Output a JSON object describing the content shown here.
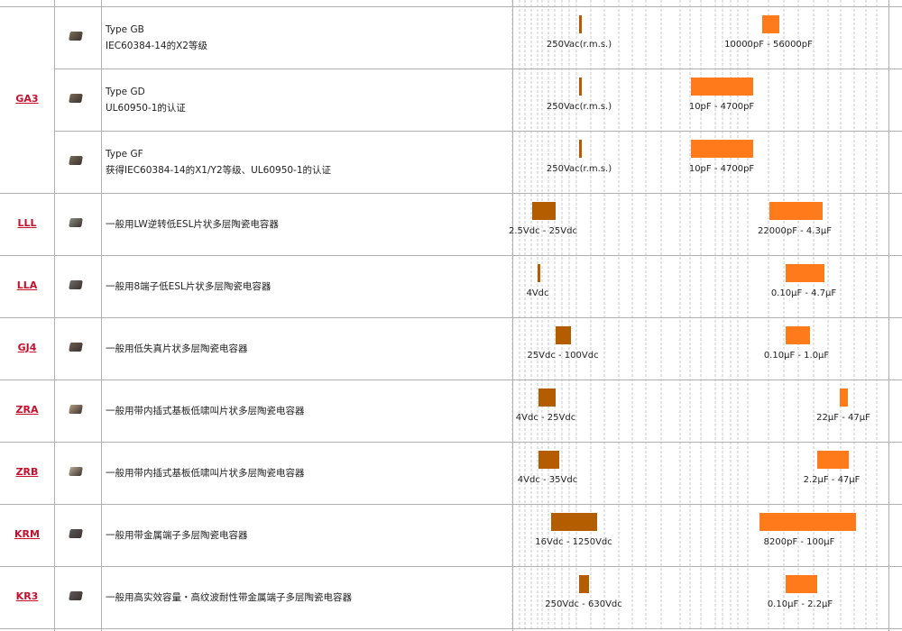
{
  "colors": {
    "voltage_bar": "#b35c00",
    "capacitance_bar": "#ff7a1a",
    "series_link": "#c8102e",
    "grid_line": "#c8c8c8"
  },
  "rows": [
    {
      "series": "",
      "desc1": "Type GB",
      "desc2": "IEC60384-14的X2等级",
      "icon": "capacitor-chip-icon",
      "voltage_label": "250Vac(r.m.s.)",
      "capacitance_label": "10000pF - 56000pF"
    },
    {
      "series": "GA3",
      "desc1": "Type GD",
      "desc2": "UL60950-1的认证",
      "icon": "capacitor-chip-icon",
      "voltage_label": "250Vac(r.m.s.)",
      "capacitance_label": "10pF - 4700pF"
    },
    {
      "series": "",
      "desc1": "Type GF",
      "desc2": "获得IEC60384-14的X1/Y2等级、UL60950-1的认证",
      "icon": "capacitor-chip-icon",
      "voltage_label": "250Vac(r.m.s.)",
      "capacitance_label": "10pF - 4700pF"
    },
    {
      "series": "LLL",
      "desc1": "一般用LW逆转低ESL片状多层陶瓷电容器",
      "desc2": "",
      "icon": "capacitor-chip-icon",
      "voltage_label": "2.5Vdc - 25Vdc",
      "capacitance_label": "22000pF - 4.3μF"
    },
    {
      "series": "LLA",
      "desc1": "一般用8端子低ESL片状多层陶瓷电容器",
      "desc2": "",
      "icon": "capacitor-chip-icon",
      "voltage_label": "4Vdc",
      "capacitance_label": "0.10μF - 4.7μF"
    },
    {
      "series": "GJ4",
      "desc1": "一般用低失真片状多层陶瓷电容器",
      "desc2": "",
      "icon": "capacitor-chip-icon",
      "voltage_label": "25Vdc - 100Vdc",
      "capacitance_label": "0.10μF - 1.0μF"
    },
    {
      "series": "ZRA",
      "desc1": "一般用带内插式基板低啸叫片状多层陶瓷电容器",
      "desc2": "",
      "icon": "capacitor-chip-icon",
      "voltage_label": "4Vdc - 25Vdc",
      "capacitance_label": "22μF - 47μF"
    },
    {
      "series": "ZRB",
      "desc1": "一般用带内插式基板低啸叫片状多层陶瓷电容器",
      "desc2": "",
      "icon": "capacitor-chip-icon",
      "voltage_label": "4Vdc - 35Vdc",
      "capacitance_label": "2.2μF - 47μF"
    },
    {
      "series": "KRM",
      "desc1": "一般用带金属端子多层陶瓷电容器",
      "desc2": "",
      "icon": "capacitor-chip-icon",
      "voltage_label": "16Vdc - 1250Vdc",
      "capacitance_label": "8200pF - 100μF"
    },
    {
      "series": "KR3",
      "desc1": "一般用高实效容量・高纹波耐性带金属端子多层陶瓷电容器",
      "desc2": "",
      "icon": "capacitor-chip-icon",
      "voltage_label": "250Vdc - 630Vdc",
      "capacitance_label": "0.10μF - 2.2μF"
    }
  ]
}
